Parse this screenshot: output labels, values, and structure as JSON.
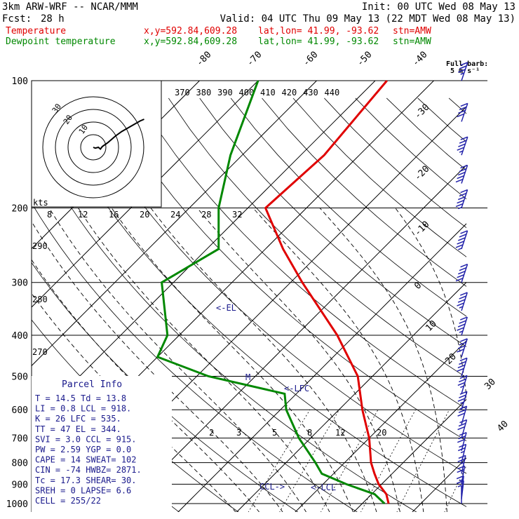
{
  "header": {
    "model": "3km ARW-WRF -- NCAR/MMM",
    "init": "Init: 00 UTC Wed 08 May 13",
    "fcst_label": "Fcst:",
    "fcst_hours": "28 h",
    "valid": "Valid: 04 UTC Thu 09 May 13 (22 MDT Wed 08 May 13)",
    "temperature_line": {
      "label": "Temperature",
      "xy": "x,y=592.84,609.28",
      "latlon": "lat,lon= 41.99, -93.62",
      "stn": "stn=AMW"
    },
    "dewpoint_line": {
      "label": "Dewpoint temperature",
      "xy": "x,y=592.84,609.28",
      "latlon": "lat,lon= 41.99, -93.62",
      "stn": "stn=AMW"
    }
  },
  "barb_legend": {
    "line1": "Full barb:",
    "line2": "5 m s⁻¹"
  },
  "pressure_labels": [
    "100",
    "200",
    "300",
    "400",
    "500",
    "600",
    "700",
    "800",
    "900",
    "1000"
  ],
  "isotherm_labels": [
    "-80",
    "-70",
    "-60",
    "-50",
    "-40",
    "-30",
    "-20",
    "-10",
    "0",
    "10",
    "20",
    "30",
    "40"
  ],
  "theta_labels": [
    "370",
    "380",
    "390",
    "400",
    "410",
    "420",
    "430",
    "440"
  ],
  "mixing_ratio_labels": [
    "2",
    "3",
    "5",
    "8",
    "12",
    "20"
  ],
  "hodograph": {
    "ring_labels": [
      "30",
      "20",
      "10"
    ],
    "units": "kts",
    "speed_labels": [
      "8",
      "12",
      "16",
      "20",
      "24",
      "28",
      "32"
    ],
    "hodo_points": [
      [
        0,
        0
      ],
      [
        2,
        1
      ],
      [
        5,
        0
      ],
      [
        7,
        2
      ],
      [
        9,
        -1
      ],
      [
        14,
        -5
      ],
      [
        18,
        -9
      ],
      [
        22,
        -13
      ],
      [
        28,
        -18
      ],
      [
        34,
        -22
      ],
      [
        40,
        -26
      ],
      [
        46,
        -30
      ],
      [
        50,
        -32
      ]
    ]
  },
  "left_axis_labels": [
    "290",
    "280",
    "270"
  ],
  "parcel_info": {
    "title": "Parcel Info",
    "rows": [
      "T  =   14.5 Td =  13.8",
      "LI =    0.8 LCL =  918.",
      "K  =     26 LFC =  535.",
      "TT =     47 EL  =  344.",
      "SVI =   3.0 CCL =  915.",
      "PW =   2.59 YGP =   0.0",
      "CAPE =   14 SWEAT=  102",
      "CIN =   -74 HWBZ= 2871.",
      "Tc =   17.3 SHEAR=  30.",
      "SREH =    0 LAPSE=  6.6",
      "CELL = 255/22"
    ]
  },
  "annotations": {
    "el": "<-EL",
    "lfc": "<-LFC",
    "m": "M",
    "ccl": "CCL->",
    "lcl": "<-LCL"
  },
  "colors": {
    "temperature": "#e00000",
    "dewpoint": "#008800",
    "grid": "#000000",
    "navy": "#1a1a8c",
    "barb": "#2222aa"
  },
  "chart_data": {
    "type": "line",
    "title": "3km ARW-WRF -- NCAR/MMM",
    "xlabel": "",
    "ylabel": "",
    "y_scale": "log-pressure",
    "ylim": [
      1000,
      100
    ],
    "series": [
      {
        "name": "Temperature",
        "points": [
          [
            1000,
            14.5
          ],
          [
            950,
            12.5
          ],
          [
            900,
            9.5
          ],
          [
            850,
            7.0
          ],
          [
            800,
            4.5
          ],
          [
            700,
            0.0
          ],
          [
            600,
            -6.0
          ],
          [
            500,
            -12.5
          ],
          [
            400,
            -23.0
          ],
          [
            300,
            -38.0
          ],
          [
            250,
            -47.0
          ],
          [
            200,
            -57.0
          ],
          [
            150,
            -56.0
          ],
          [
            100,
            -58.0
          ]
        ]
      },
      {
        "name": "Dewpoint temperature",
        "points": [
          [
            1000,
            13.8
          ],
          [
            950,
            10.5
          ],
          [
            900,
            4.0
          ],
          [
            850,
            -2.0
          ],
          [
            800,
            -5.0
          ],
          [
            700,
            -12.0
          ],
          [
            600,
            -19.0
          ],
          [
            550,
            -22.0
          ],
          [
            500,
            -38.0
          ],
          [
            450,
            -50.0
          ],
          [
            400,
            -52.0
          ],
          [
            300,
            -62.0
          ],
          [
            250,
            -58.0
          ],
          [
            200,
            -65.0
          ],
          [
            150,
            -72.0
          ],
          [
            100,
            -80.0
          ]
        ]
      }
    ],
    "wind_barbs": [
      {
        "p": 1000,
        "spd": 5,
        "dir": 180
      },
      {
        "p": 975,
        "spd": 10,
        "dir": 200
      },
      {
        "p": 950,
        "spd": 15,
        "dir": 200
      },
      {
        "p": 900,
        "spd": 20,
        "dir": 210
      },
      {
        "p": 850,
        "spd": 25,
        "dir": 220
      },
      {
        "p": 800,
        "spd": 25,
        "dir": 225
      },
      {
        "p": 750,
        "spd": 30,
        "dir": 230
      },
      {
        "p": 700,
        "spd": 30,
        "dir": 235
      },
      {
        "p": 650,
        "spd": 30,
        "dir": 235
      },
      {
        "p": 600,
        "spd": 35,
        "dir": 240
      },
      {
        "p": 550,
        "spd": 35,
        "dir": 240
      },
      {
        "p": 500,
        "spd": 40,
        "dir": 240
      },
      {
        "p": 450,
        "spd": 40,
        "dir": 245
      },
      {
        "p": 400,
        "spd": 45,
        "dir": 245
      },
      {
        "p": 350,
        "spd": 45,
        "dir": 245
      },
      {
        "p": 300,
        "spd": 50,
        "dir": 250
      },
      {
        "p": 250,
        "spd": 55,
        "dir": 250
      },
      {
        "p": 200,
        "spd": 55,
        "dir": 250
      },
      {
        "p": 175,
        "spd": 50,
        "dir": 250
      },
      {
        "p": 150,
        "spd": 45,
        "dir": 255
      },
      {
        "p": 125,
        "spd": 40,
        "dir": 255
      },
      {
        "p": 100,
        "spd": 35,
        "dir": 255
      }
    ]
  }
}
